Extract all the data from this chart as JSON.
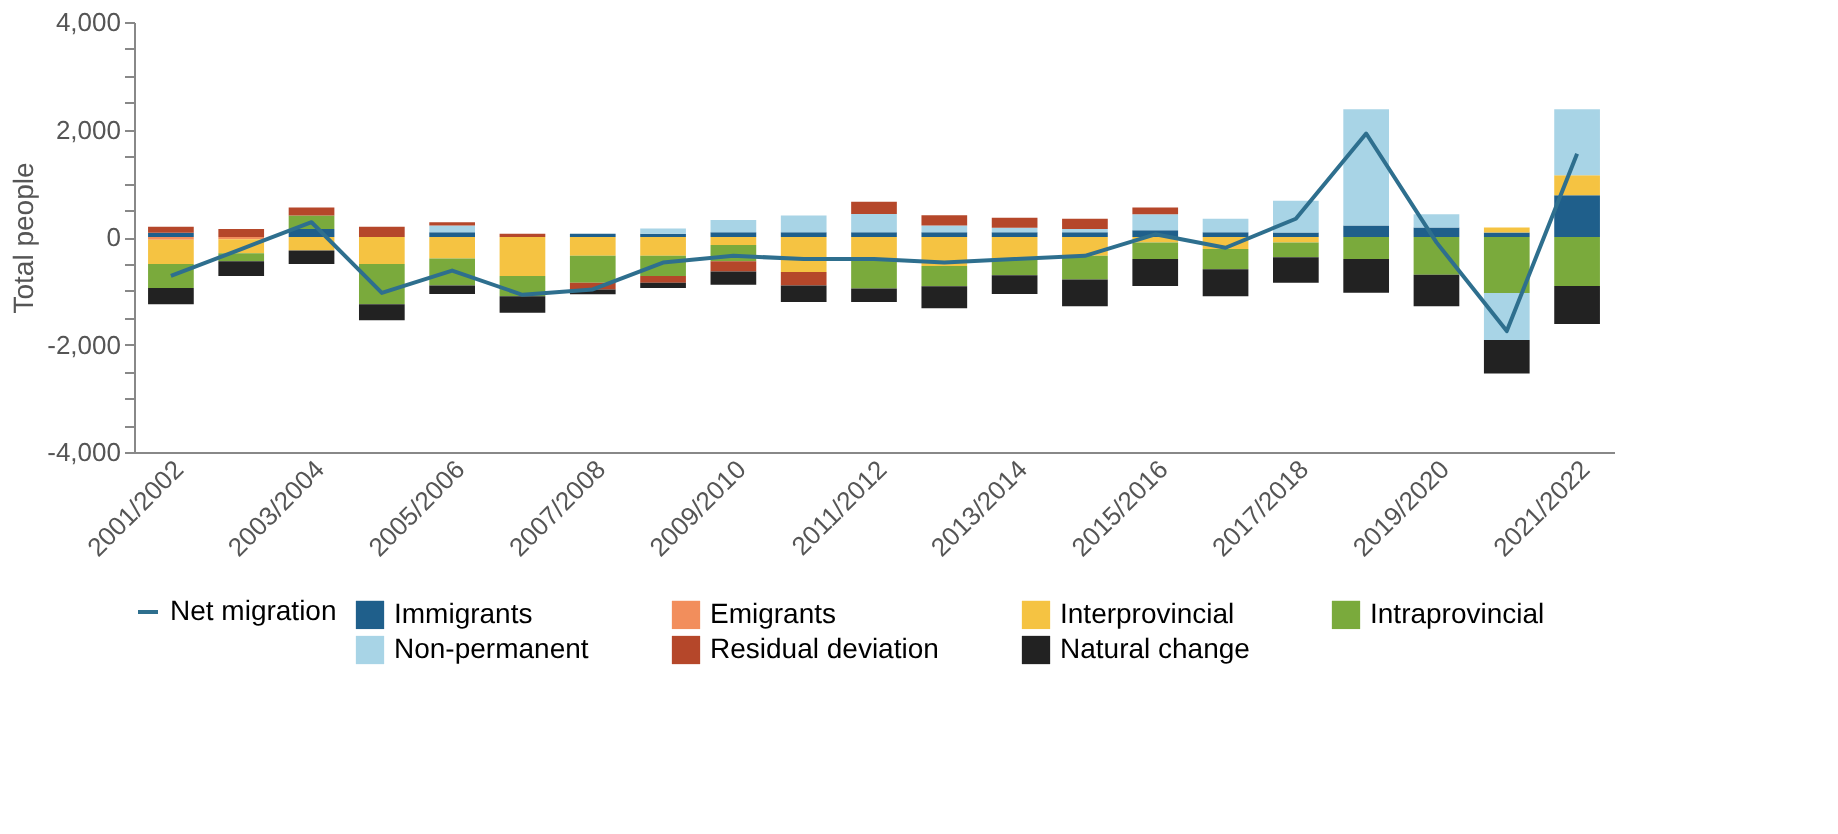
{
  "chart_data": {
    "type": "bar",
    "stacked": true,
    "ylabel": "Total people",
    "legend": "bottom",
    "categories": [
      "2001/2002",
      null,
      "2003/2004",
      null,
      "2005/2006",
      null,
      "2007/2008",
      null,
      "2009/2010",
      null,
      "2011/2012",
      null,
      "2013/2014",
      null,
      "2015/2016",
      null,
      "2017/2018",
      null,
      "2019/2020",
      null,
      "2021/2022"
    ],
    "ylim": [
      -4000,
      4000
    ],
    "yticks": [
      {
        "value": -4000,
        "label": "-4,000"
      },
      {
        "value": -3500,
        "label": null
      },
      {
        "value": -3000,
        "label": null
      },
      {
        "value": -2500,
        "label": null
      },
      {
        "value": -2000,
        "label": "-2,000"
      },
      {
        "value": -1500,
        "label": null
      },
      {
        "value": -1000,
        "label": null
      },
      {
        "value": -500,
        "label": null
      },
      0,
      {
        "value": 500,
        "label": null
      },
      {
        "value": 1000,
        "label": null
      },
      {
        "value": 1500,
        "label": null
      },
      {
        "value": 2000,
        "label": "2,000"
      },
      {
        "value": 2500,
        "label": null
      },
      {
        "value": 3000,
        "label": null
      },
      {
        "value": 3500,
        "label": null
      },
      {
        "value": 4000,
        "label": "4,000"
      }
    ],
    "series": [
      {
        "name": "Immigrants",
        "color": "#1f5f8b",
        "values": [
          80,
          null,
          150,
          null,
          90,
          null,
          60,
          60,
          90,
          90,
          90,
          90,
          90,
          90,
          125,
          90,
          85,
          215,
          175,
          85,
          775
        ]
      },
      {
        "name": "Emigrants",
        "color": "#f28e5c",
        "values": [
          -50,
          -40,
          null,
          null,
          null,
          null,
          null,
          null,
          null,
          null,
          null,
          null,
          null,
          null,
          null,
          null,
          null,
          null,
          null,
          null,
          null
        ]
      },
      {
        "name": "Interprovincial",
        "color": "#f5c342",
        "values": [
          -450,
          -260,
          -250,
          -500,
          -400,
          -725,
          -350,
          -350,
          -150,
          -650,
          -400,
          -540,
          -400,
          -350,
          -100,
          -225,
          -100,
          null,
          null,
          90,
          375
        ]
      },
      {
        "name": "Intraprovincial",
        "color": "#7aaa3c",
        "values": [
          -450,
          -150,
          250,
          -750,
          -500,
          -375,
          -500,
          -375,
          -300,
          null,
          -560,
          -375,
          -310,
          -440,
          -310,
          -375,
          -275,
          -410,
          -700,
          -1040,
          -910
        ]
      },
      {
        "name": "Non-permanent",
        "color": "#a8d4e6",
        "values": [
          null,
          null,
          null,
          null,
          125,
          null,
          null,
          100,
          225,
          310,
          340,
          125,
          80,
          60,
          300,
          250,
          590,
          2160,
          250,
          -875,
          1225
        ]
      },
      {
        "name": "Residual deviation",
        "color": "#b5472a",
        "values": [
          110,
          150,
          150,
          190,
          60,
          60,
          -125,
          -125,
          -190,
          -250,
          225,
          190,
          190,
          190,
          125,
          null,
          null,
          null,
          null,
          null,
          null
        ]
      },
      {
        "name": "Natural change",
        "color": "#222222",
        "values": [
          -300,
          -275,
          -250,
          -300,
          -160,
          -310,
          -90,
          -100,
          -250,
          -310,
          -250,
          -410,
          -350,
          -500,
          -500,
          -500,
          -475,
          -625,
          -590,
          -625,
          -710
        ]
      },
      {
        "name": "Net migration",
        "type": "line",
        "color": "#2e6f8e",
        "values": [
          -725,
          -225,
          275,
          -1040,
          -625,
          -1075,
          -975,
          -475,
          -350,
          -410,
          -410,
          -475,
          -410,
          -350,
          50,
          -200,
          340,
          1925,
          -100,
          -1750,
          1550
        ]
      }
    ]
  }
}
